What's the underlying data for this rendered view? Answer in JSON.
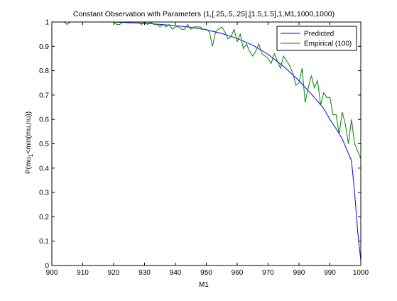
{
  "chart_data": {
    "type": "line",
    "title": "Constant Observation with Parameters (1,[.25,.5,.25],[1.5,1.5],1,M1,1000,1000)",
    "xlabel": "M1",
    "ylabel": "P(mu_1 <min(mu,nu))",
    "ylabel_parts": {
      "before": "P(mu",
      "sub": "1",
      "after": "<min(mu,nu))"
    },
    "xlim": [
      900,
      1000
    ],
    "ylim": [
      0,
      1
    ],
    "xticks": [
      900,
      910,
      920,
      930,
      940,
      950,
      960,
      970,
      980,
      990,
      1000
    ],
    "xtick_labels": [
      "900",
      "910",
      "920",
      "930",
      "940",
      "950",
      "960",
      "970",
      "980",
      "990",
      "1000"
    ],
    "yticks": [
      0,
      0.1,
      0.2,
      0.3,
      0.4,
      0.5,
      0.6,
      0.7,
      0.8,
      0.9,
      1
    ],
    "ytick_labels": [
      "0",
      "0.1",
      "0.2",
      "0.3",
      "0.4",
      "0.5",
      "0.6",
      "0.7",
      "0.8",
      "0.9",
      "1"
    ],
    "grid": false,
    "legend_position": "top-right",
    "series": [
      {
        "name": "Predicted",
        "color": "#0000ff",
        "x": [
          900,
          910,
          920,
          925,
          930,
          935,
          940,
          945,
          950,
          955,
          960,
          965,
          970,
          975,
          980,
          985,
          988,
          990,
          992,
          994,
          995,
          996,
          997,
          998,
          999,
          1000
        ],
        "y": [
          1.0,
          1.0,
          1.0,
          0.997,
          0.995,
          0.99,
          0.985,
          0.978,
          0.968,
          0.953,
          0.932,
          0.905,
          0.867,
          0.818,
          0.759,
          0.69,
          0.645,
          0.6,
          0.562,
          0.52,
          0.49,
          0.46,
          0.43,
          0.3,
          0.14,
          0.02
        ]
      },
      {
        "name": "Empirical (100)",
        "color": "#008000",
        "x": [
          900,
          901,
          902,
          903,
          904,
          905,
          906,
          907,
          908,
          909,
          910,
          911,
          912,
          913,
          914,
          915,
          916,
          917,
          918,
          919,
          920,
          921,
          922,
          923,
          924,
          925,
          926,
          927,
          928,
          929,
          930,
          931,
          932,
          933,
          934,
          935,
          936,
          937,
          938,
          939,
          940,
          941,
          942,
          943,
          944,
          945,
          946,
          947,
          948,
          949,
          950,
          951,
          952,
          953,
          954,
          955,
          956,
          957,
          958,
          959,
          960,
          961,
          962,
          963,
          964,
          965,
          966,
          967,
          968,
          969,
          970,
          971,
          972,
          973,
          974,
          975,
          976,
          977,
          978,
          979,
          980,
          981,
          982,
          983,
          984,
          985,
          986,
          987,
          988,
          989,
          990,
          991,
          992,
          993,
          994,
          995,
          996,
          997,
          998,
          999,
          1000
        ],
        "y": [
          1.0,
          1.0,
          1.0,
          1.0,
          1.0,
          0.99,
          1.0,
          1.0,
          1.0,
          1.0,
          1.0,
          1.0,
          1.0,
          1.0,
          1.0,
          1.0,
          1.0,
          1.0,
          1.0,
          1.0,
          1.0,
          0.99,
          0.99,
          1.0,
          1.0,
          1.0,
          1.0,
          1.0,
          1.0,
          0.99,
          1.0,
          0.99,
          1.0,
          0.99,
          0.99,
          0.98,
          0.99,
          0.98,
          0.99,
          0.97,
          0.98,
          0.98,
          0.97,
          0.97,
          0.99,
          0.97,
          0.98,
          0.98,
          0.98,
          0.97,
          0.97,
          0.96,
          0.9,
          0.96,
          0.97,
          0.98,
          0.96,
          0.93,
          0.94,
          0.97,
          0.92,
          0.95,
          0.89,
          0.91,
          0.88,
          0.86,
          0.88,
          0.91,
          0.87,
          0.86,
          0.85,
          0.83,
          0.87,
          0.84,
          0.81,
          0.86,
          0.84,
          0.82,
          0.79,
          0.74,
          0.75,
          0.81,
          0.67,
          0.73,
          0.78,
          0.73,
          0.76,
          0.66,
          0.71,
          0.69,
          0.69,
          0.62,
          0.62,
          0.54,
          0.63,
          0.58,
          0.5,
          0.6,
          0.5,
          0.47,
          0.44
        ]
      }
    ]
  }
}
